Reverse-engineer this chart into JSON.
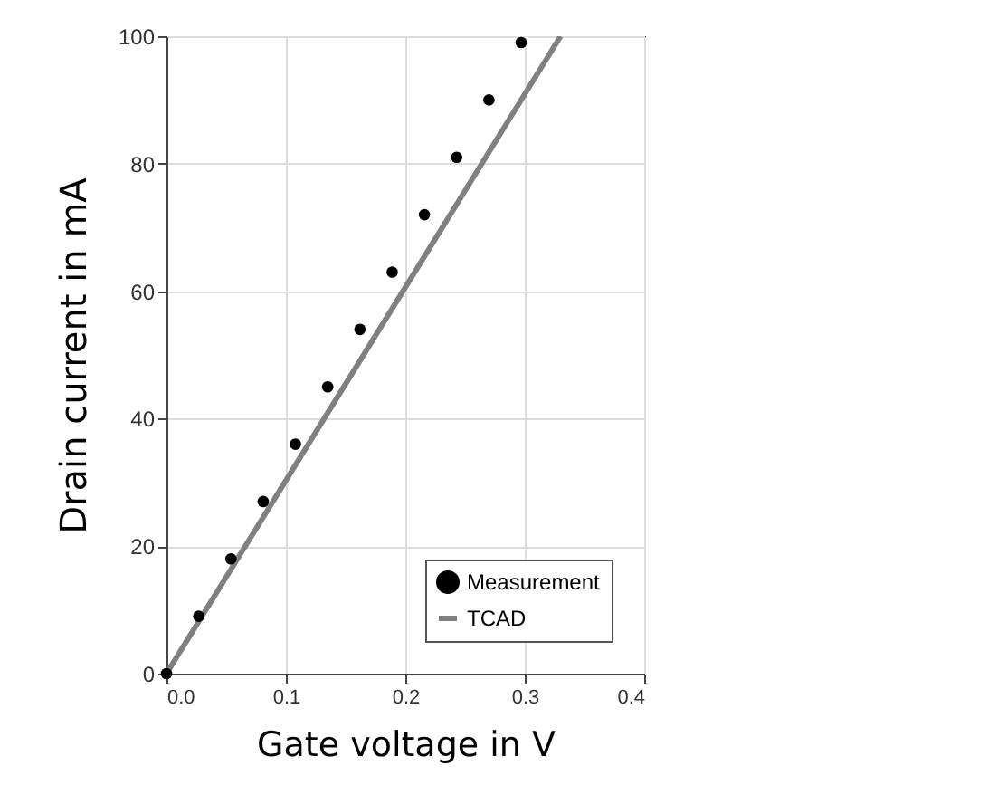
{
  "chart_data": {
    "type": "scatter",
    "xlabel": "Gate voltage in V",
    "ylabel": "Drain current in mA",
    "xlim": [
      0,
      0.4
    ],
    "ylim": [
      0,
      100
    ],
    "xticks": [
      {
        "value": 0,
        "label": "0.0"
      },
      {
        "value": 0.1,
        "label": "0.1"
      },
      {
        "value": 0.2,
        "label": "0.2"
      },
      {
        "value": 0.3,
        "label": "0.3"
      },
      {
        "value": 0.4,
        "label": "0.4"
      }
    ],
    "yticks": [
      0,
      20,
      40,
      60,
      80,
      100
    ],
    "grid": true,
    "legend": "bottom right",
    "series": [
      {
        "name": "Measurement",
        "type": "scatter",
        "marker": "circle",
        "color": "#000000",
        "x": [
          0,
          0.027,
          0.054,
          0.081,
          0.108,
          0.135,
          0.162,
          0.189,
          0.216,
          0.243,
          0.27,
          0.297
        ],
        "values": [
          0,
          9,
          18,
          27,
          36,
          45,
          54,
          63,
          72,
          81,
          90,
          99
        ]
      },
      {
        "name": "TCAD",
        "type": "line",
        "color": "#808080",
        "x": [
          0,
          0.33
        ],
        "values": [
          0,
          100
        ]
      }
    ]
  }
}
